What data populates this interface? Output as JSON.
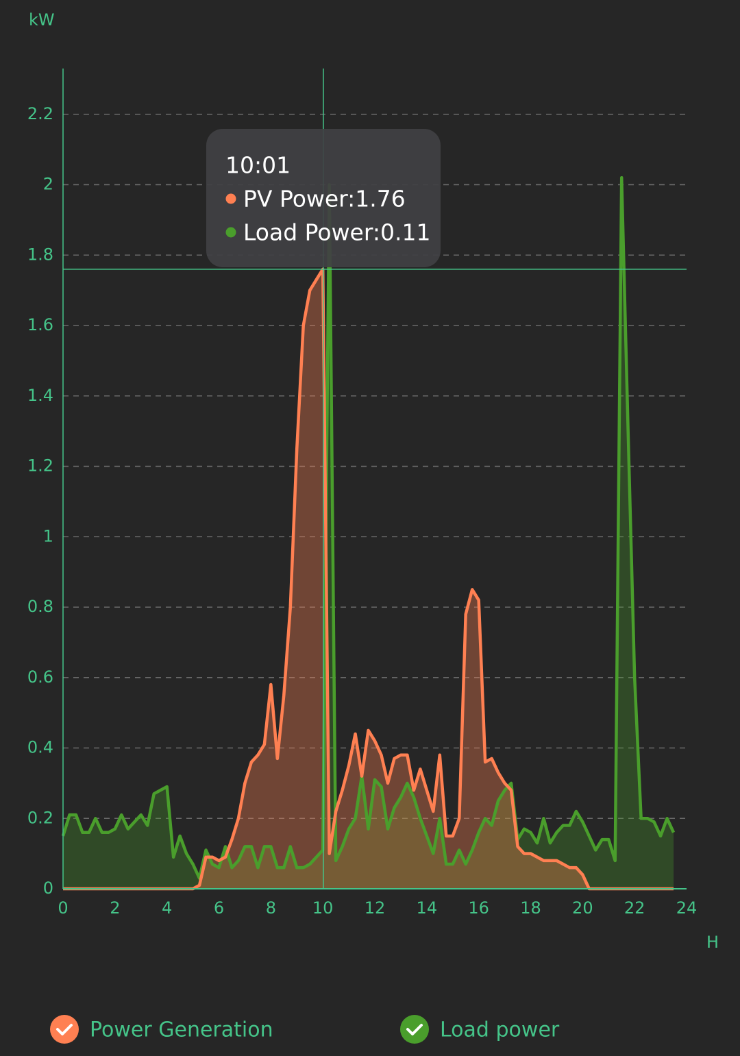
{
  "chart_data": {
    "type": "area",
    "y_unit": "kW",
    "x_unit": "H",
    "x": [
      0,
      0.25,
      0.5,
      0.75,
      1,
      1.25,
      1.5,
      1.75,
      2,
      2.25,
      2.5,
      2.75,
      3,
      3.25,
      3.5,
      3.75,
      4,
      4.25,
      4.5,
      4.75,
      5,
      5.25,
      5.5,
      5.75,
      6,
      6.25,
      6.5,
      6.75,
      7,
      7.25,
      7.5,
      7.75,
      8,
      8.25,
      8.5,
      8.75,
      9,
      9.25,
      9.5,
      9.75,
      10,
      10.25,
      10.5,
      10.75,
      11,
      11.25,
      11.5,
      11.75,
      12,
      12.25,
      12.5,
      12.75,
      13,
      13.25,
      13.5,
      13.75,
      14,
      14.25,
      14.5,
      14.75,
      15,
      15.25,
      15.5,
      15.75,
      16,
      16.25,
      16.5,
      16.75,
      17,
      17.25,
      17.5,
      17.75,
      18,
      18.25,
      18.5,
      18.75,
      19,
      19.25,
      19.5,
      19.75,
      20,
      20.25,
      20.5,
      20.75,
      21,
      21.25,
      21.5,
      21.75,
      22,
      22.25,
      22.5,
      22.75,
      23,
      23.25,
      23.5
    ],
    "series": [
      {
        "name": "Power Generation",
        "color": "#ff8052",
        "fill": "rgba(255,128,82,0.34)",
        "values": [
          0,
          0,
          0,
          0,
          0,
          0,
          0,
          0,
          0,
          0,
          0,
          0,
          0,
          0,
          0,
          0,
          0,
          0,
          0,
          0,
          0,
          0.01,
          0.09,
          0.09,
          0.08,
          0.09,
          0.14,
          0.2,
          0.3,
          0.36,
          0.38,
          0.41,
          0.58,
          0.37,
          0.55,
          0.8,
          1.25,
          1.6,
          1.7,
          1.73,
          1.76,
          0.1,
          0.22,
          0.28,
          0.35,
          0.44,
          0.32,
          0.45,
          0.42,
          0.38,
          0.3,
          0.37,
          0.38,
          0.38,
          0.28,
          0.34,
          0.28,
          0.22,
          0.38,
          0.15,
          0.15,
          0.2,
          0.78,
          0.85,
          0.82,
          0.36,
          0.37,
          0.33,
          0.3,
          0.28,
          0.12,
          0.1,
          0.1,
          0.09,
          0.08,
          0.08,
          0.08,
          0.07,
          0.06,
          0.06,
          0.04,
          0,
          0,
          0,
          0,
          0,
          0,
          0,
          0,
          0,
          0,
          0,
          0,
          0,
          0
        ]
      },
      {
        "name": "Load power",
        "color": "#4a9e2c",
        "fill": "rgba(74,158,44,0.3)",
        "values": [
          0.15,
          0.21,
          0.21,
          0.16,
          0.16,
          0.2,
          0.16,
          0.16,
          0.17,
          0.21,
          0.17,
          0.19,
          0.21,
          0.18,
          0.27,
          0.28,
          0.29,
          0.09,
          0.15,
          0.1,
          0.07,
          0.03,
          0.11,
          0.07,
          0.06,
          0.12,
          0.06,
          0.08,
          0.12,
          0.12,
          0.06,
          0.12,
          0.12,
          0.06,
          0.06,
          0.12,
          0.06,
          0.06,
          0.07,
          0.09,
          0.11,
          2.0,
          0.08,
          0.12,
          0.17,
          0.2,
          0.32,
          0.17,
          0.31,
          0.29,
          0.17,
          0.23,
          0.26,
          0.3,
          0.26,
          0.2,
          0.15,
          0.1,
          0.2,
          0.07,
          0.07,
          0.11,
          0.07,
          0.11,
          0.16,
          0.2,
          0.18,
          0.25,
          0.28,
          0.3,
          0.14,
          0.17,
          0.16,
          0.13,
          0.2,
          0.13,
          0.16,
          0.18,
          0.18,
          0.22,
          0.19,
          0.15,
          0.11,
          0.14,
          0.14,
          0.08,
          2.02,
          1.3,
          0.6,
          0.2,
          0.2,
          0.19,
          0.15,
          0.2,
          0.16
        ]
      }
    ],
    "xlim": [
      0,
      24
    ],
    "xticks": [
      0,
      2,
      4,
      6,
      8,
      10,
      12,
      14,
      16,
      18,
      20,
      22,
      24
    ],
    "ylim": [
      0,
      2.33
    ],
    "yticks": [
      0,
      0.2,
      0.4,
      0.6,
      0.8,
      1,
      1.2,
      1.4,
      1.6,
      1.8,
      2,
      2.2
    ],
    "grid": true,
    "tooltip": {
      "title": "10:01",
      "x": 10.02,
      "y": 1.76,
      "lines": [
        "PV Power:1.76",
        "Load Power:0.11"
      ]
    }
  }
}
